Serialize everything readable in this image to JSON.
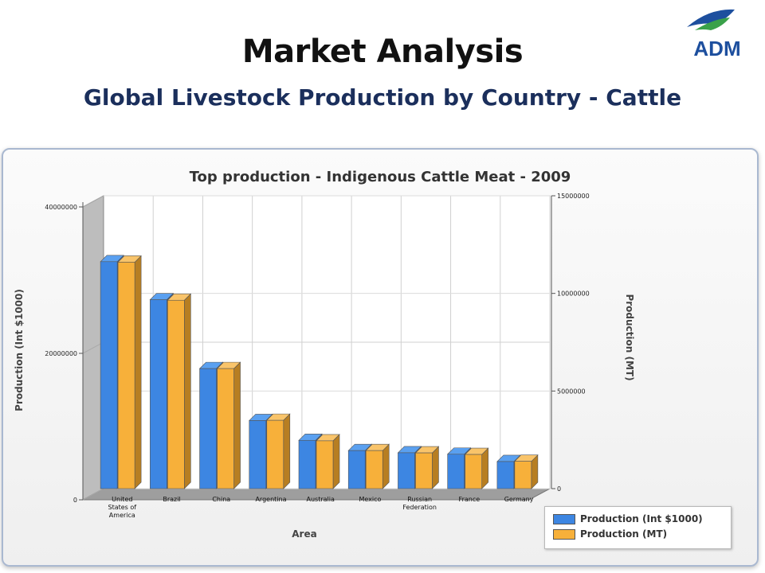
{
  "slide": {
    "title": "Market Analysis",
    "subtitle": "Global Livestock Production by Country - Cattle",
    "logo_text": "ADM"
  },
  "colors": {
    "series_int": "#3d86e2",
    "series_mt": "#f7b03a",
    "logo_blue": "#1d4f9e",
    "logo_green": "#3aa14a"
  },
  "legend": {
    "items": [
      "Production (Int $1000)",
      "Production (MT)"
    ]
  },
  "chart_data": {
    "type": "bar",
    "title": "Top production - Indigenous Cattle Meat - 2009",
    "xlabel": "Area",
    "ylabel": "Production (Int $1000)",
    "y2label": "Production (MT)",
    "categories": [
      [
        "United",
        "States of",
        "America"
      ],
      [
        "Brazil"
      ],
      [
        "China"
      ],
      [
        "Argentina"
      ],
      [
        "Australia"
      ],
      [
        "Mexico"
      ],
      [
        "Russian",
        "Federation"
      ],
      [
        "France"
      ],
      [
        "Germany"
      ]
    ],
    "ylim": [
      0,
      40000000
    ],
    "y2lim": [
      0,
      15000000
    ],
    "yticks": [
      "0",
      "20000000",
      "40000000"
    ],
    "y2ticks": [
      "0",
      "5000000",
      "10000000",
      "15000000"
    ],
    "grid": true,
    "legend_position": "bottom-right",
    "series": [
      {
        "name": "Production (Int $1000)",
        "axis": "left",
        "values": [
          31000000,
          25800000,
          16400000,
          9300000,
          6600000,
          5200000,
          4900000,
          4700000,
          3700000
        ]
      },
      {
        "name": "Production (MT)",
        "axis": "right",
        "values": [
          11600000,
          9650000,
          6150000,
          3500000,
          2450000,
          1950000,
          1830000,
          1750000,
          1400000
        ]
      }
    ]
  }
}
